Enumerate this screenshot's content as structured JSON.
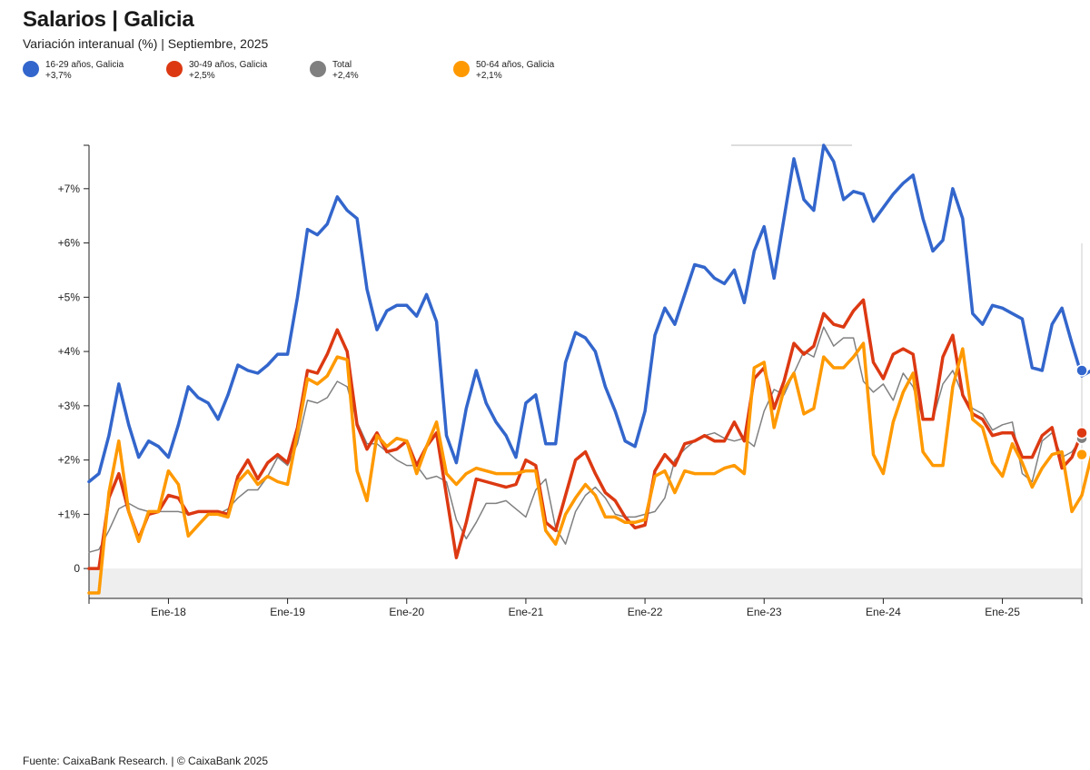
{
  "title": "Salarios | Galicia",
  "subtitle": "Variación interanual (%) | Septiembre, 2025",
  "legend": [
    {
      "label": "16-29 años, Galicia",
      "value": "+3,7%",
      "color": "#3366cc"
    },
    {
      "label": "30-49 años, Galicia",
      "value": "+2,5%",
      "color": "#dc3912"
    },
    {
      "label": "Total",
      "value": "+2,4%",
      "color": "#808080"
    },
    {
      "label": "50-64 años, Galicia",
      "value": "+2,1%",
      "color": "#ff9900"
    }
  ],
  "source": "Fuente: CaixaBank Research. | © CaixaBank 2025",
  "chart_data": {
    "type": "line",
    "title": "Salarios | Galicia",
    "ylabel": "Variación interanual (%)",
    "xlabel": "",
    "ylim": [
      -0.55,
      7.8
    ],
    "start_month": "2017-05",
    "x_ticks": [
      "Ene-18",
      "Ene-19",
      "Ene-20",
      "Ene-21",
      "Ene-22",
      "Ene-23",
      "Ene-24",
      "Ene-25"
    ],
    "y_ticks": [
      {
        "value": 0,
        "label": "0"
      },
      {
        "value": 1,
        "label": "+1%"
      },
      {
        "value": 2,
        "label": "+2%"
      },
      {
        "value": 3,
        "label": "+3%"
      },
      {
        "value": 4,
        "label": "+4%"
      },
      {
        "value": 5,
        "label": "+5%"
      },
      {
        "value": 6,
        "label": "+6%"
      },
      {
        "value": 7,
        "label": "+7%"
      }
    ],
    "series": [
      {
        "name": "Total",
        "color": "#808080",
        "width": 1.5,
        "values": [
          0.3,
          0.35,
          0.7,
          1.1,
          1.2,
          1.1,
          1.05,
          1.05,
          1.05,
          1.05,
          1.0,
          1.05,
          1.05,
          1.0,
          1.1,
          1.3,
          1.45,
          1.45,
          1.7,
          2.05,
          1.9,
          2.3,
          3.1,
          3.05,
          3.15,
          3.45,
          3.35,
          2.7,
          2.3,
          2.3,
          2.15,
          2.0,
          1.9,
          1.9,
          1.65,
          1.7,
          1.6,
          0.9,
          0.55,
          0.85,
          1.2,
          1.2,
          1.25,
          1.1,
          0.95,
          1.45,
          1.65,
          0.75,
          0.45,
          1.05,
          1.35,
          1.5,
          1.3,
          1.0,
          0.95,
          0.95,
          1.0,
          1.05,
          1.3,
          2.0,
          2.2,
          2.35,
          2.45,
          2.5,
          2.4,
          2.35,
          2.4,
          2.25,
          2.9,
          3.3,
          3.2,
          3.6,
          4.0,
          3.9,
          4.45,
          4.1,
          4.25,
          4.25,
          3.45,
          3.25,
          3.4,
          3.1,
          3.6,
          3.35,
          2.75,
          2.75,
          3.4,
          3.65,
          3.2,
          2.95,
          2.85,
          2.55,
          2.65,
          2.7,
          1.75,
          1.6,
          2.35,
          2.5,
          2.05,
          2.15,
          2.4
        ]
      },
      {
        "name": "30-49 años, Galicia",
        "color": "#dc3912",
        "width": 3.5,
        "values": [
          0.0,
          0.0,
          1.3,
          1.75,
          1.05,
          0.55,
          1.0,
          1.05,
          1.35,
          1.3,
          1.0,
          1.05,
          1.05,
          1.05,
          1.0,
          1.7,
          2.0,
          1.65,
          1.95,
          2.1,
          1.95,
          2.6,
          3.65,
          3.6,
          3.95,
          4.4,
          4.0,
          2.65,
          2.2,
          2.5,
          2.15,
          2.2,
          2.35,
          1.9,
          2.25,
          2.5,
          1.35,
          0.2,
          0.85,
          1.65,
          1.6,
          1.55,
          1.5,
          1.55,
          2.0,
          1.9,
          0.85,
          0.7,
          1.35,
          2.0,
          2.15,
          1.75,
          1.4,
          1.25,
          0.95,
          0.75,
          0.8,
          1.8,
          2.1,
          1.9,
          2.3,
          2.35,
          2.45,
          2.35,
          2.35,
          2.7,
          2.35,
          3.5,
          3.7,
          2.95,
          3.45,
          4.15,
          3.95,
          4.1,
          4.7,
          4.5,
          4.45,
          4.75,
          4.95,
          3.8,
          3.5,
          3.95,
          4.05,
          3.95,
          2.75,
          2.75,
          3.9,
          4.3,
          3.2,
          2.85,
          2.75,
          2.45,
          2.5,
          2.5,
          2.05,
          2.05,
          2.45,
          2.6,
          1.85,
          2.05,
          2.5
        ]
      },
      {
        "name": "50-64 años, Galicia",
        "color": "#ff9900",
        "width": 3.5,
        "values": [
          -0.45,
          -0.45,
          1.4,
          2.35,
          1.05,
          0.5,
          1.05,
          1.05,
          1.8,
          1.55,
          0.6,
          0.8,
          1.0,
          1.0,
          0.95,
          1.6,
          1.8,
          1.55,
          1.7,
          1.6,
          1.55,
          2.5,
          3.5,
          3.4,
          3.55,
          3.9,
          3.85,
          1.8,
          1.25,
          2.45,
          2.25,
          2.4,
          2.35,
          1.75,
          2.25,
          2.7,
          1.75,
          1.55,
          1.75,
          1.85,
          1.8,
          1.75,
          1.75,
          1.75,
          1.8,
          1.8,
          0.7,
          0.45,
          1.0,
          1.3,
          1.55,
          1.35,
          0.95,
          0.95,
          0.85,
          0.85,
          0.9,
          1.7,
          1.8,
          1.4,
          1.8,
          1.75,
          1.75,
          1.75,
          1.85,
          1.9,
          1.75,
          3.7,
          3.8,
          2.6,
          3.3,
          3.6,
          2.85,
          2.95,
          3.9,
          3.7,
          3.7,
          3.9,
          4.15,
          2.1,
          1.75,
          2.7,
          3.25,
          3.6,
          2.15,
          1.9,
          1.9,
          3.35,
          4.05,
          2.75,
          2.6,
          1.95,
          1.7,
          2.3,
          1.95,
          1.5,
          1.85,
          2.1,
          2.15,
          1.05,
          1.35,
          2.1
        ]
      },
      {
        "name": "16-29 años, Galicia",
        "color": "#3366cc",
        "width": 3.5,
        "values": [
          1.6,
          1.75,
          2.45,
          3.4,
          2.65,
          2.05,
          2.35,
          2.25,
          2.05,
          2.65,
          3.35,
          3.15,
          3.05,
          2.75,
          3.2,
          3.75,
          3.65,
          3.6,
          3.75,
          3.95,
          3.95,
          5.0,
          6.25,
          6.15,
          6.35,
          6.85,
          6.6,
          6.45,
          5.15,
          4.4,
          4.75,
          4.85,
          4.85,
          4.65,
          5.05,
          4.55,
          2.45,
          1.95,
          2.95,
          3.65,
          3.05,
          2.7,
          2.45,
          2.05,
          3.05,
          3.2,
          2.3,
          2.3,
          3.8,
          4.35,
          4.25,
          4.0,
          3.35,
          2.9,
          2.35,
          2.25,
          2.9,
          4.3,
          4.8,
          4.5,
          5.05,
          5.6,
          5.55,
          5.35,
          5.25,
          5.5,
          4.9,
          5.85,
          6.3,
          5.35,
          6.45,
          7.55,
          6.8,
          6.6,
          7.8,
          7.5,
          6.8,
          6.95,
          6.9,
          6.4,
          6.65,
          6.9,
          7.1,
          7.25,
          6.45,
          5.85,
          6.05,
          7.0,
          6.45,
          4.7,
          4.5,
          4.85,
          4.8,
          4.7,
          4.6,
          3.7,
          3.65,
          4.5,
          4.8,
          4.15,
          3.55,
          3.65
        ]
      }
    ]
  }
}
